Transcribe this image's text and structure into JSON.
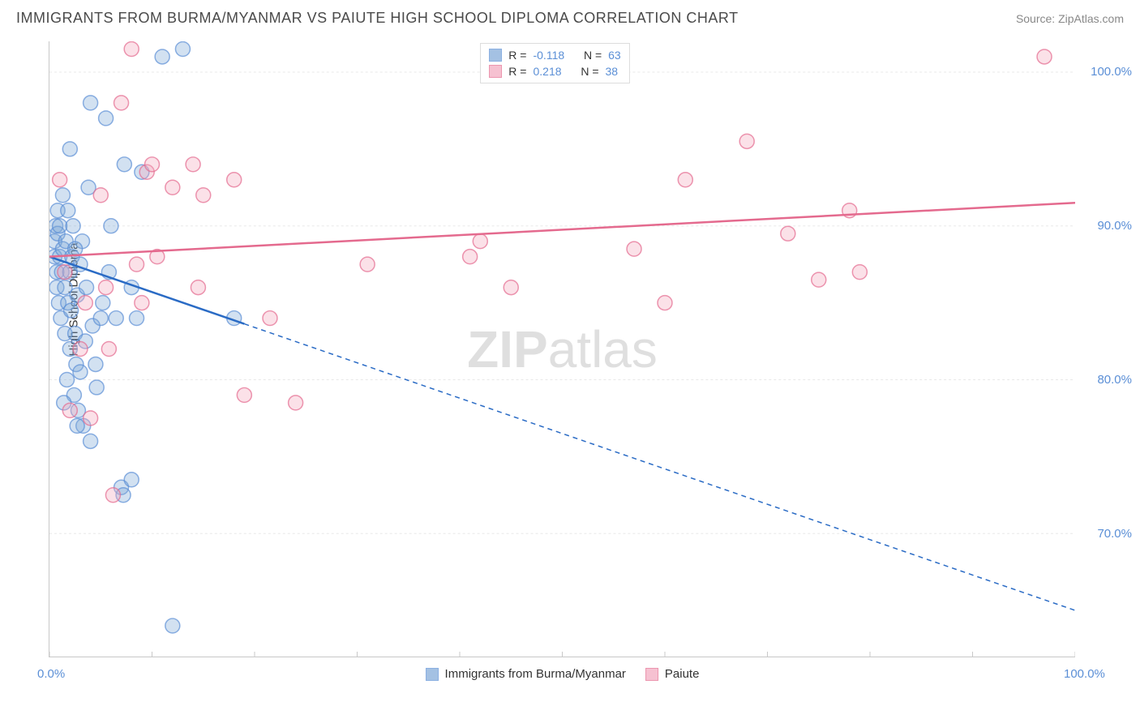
{
  "header": {
    "title": "IMMIGRANTS FROM BURMA/MYANMAR VS PAIUTE HIGH SCHOOL DIPLOMA CORRELATION CHART",
    "source": "Source: ZipAtlas.com"
  },
  "chart": {
    "type": "scatter",
    "y_axis_label": "High School Diploma",
    "background_color": "#ffffff",
    "grid_color": "#e8e8e8",
    "axis_color": "#c8c8c8",
    "tick_label_color": "#5b8fd6",
    "xlim": [
      0,
      100
    ],
    "ylim": [
      62,
      102
    ],
    "y_ticks": [
      70,
      80,
      90,
      100
    ],
    "y_tick_labels": [
      "70.0%",
      "80.0%",
      "90.0%",
      "100.0%"
    ],
    "x_ticks": [
      0,
      100
    ],
    "x_tick_labels": [
      "0.0%",
      "100.0%"
    ],
    "x_minor_ticks": [
      0,
      10,
      20,
      30,
      40,
      50,
      60,
      70,
      80,
      90,
      100
    ],
    "watermark": "ZIPatlas",
    "marker_radius": 9,
    "marker_fill_opacity": 0.35,
    "marker_stroke_width": 1.5,
    "series": [
      {
        "name": "Immigrants from Burma/Myanmar",
        "fill_color": "#7ea8d8",
        "stroke_color": "#5b8fd6",
        "trend_color": "#2a6bc5",
        "trend_width": 2.5,
        "trend_dash_from_x": 19,
        "R": "-0.118",
        "N": "63",
        "trend": {
          "x0": 0,
          "y0": 88,
          "x1": 100,
          "y1": 65
        },
        "points": [
          [
            0.5,
            88
          ],
          [
            0.5,
            89
          ],
          [
            0.6,
            90
          ],
          [
            0.7,
            87
          ],
          [
            0.7,
            86
          ],
          [
            0.8,
            91
          ],
          [
            0.8,
            89.5
          ],
          [
            0.9,
            85
          ],
          [
            1,
            88
          ],
          [
            1,
            90
          ],
          [
            1.1,
            84
          ],
          [
            1.2,
            87
          ],
          [
            1.3,
            92
          ],
          [
            1.3,
            88.5
          ],
          [
            1.5,
            83
          ],
          [
            1.5,
            86
          ],
          [
            1.6,
            89
          ],
          [
            1.7,
            80
          ],
          [
            1.8,
            91
          ],
          [
            1.8,
            85
          ],
          [
            2,
            82
          ],
          [
            2,
            87
          ],
          [
            2.1,
            84.5
          ],
          [
            2.2,
            88
          ],
          [
            2.3,
            90
          ],
          [
            2.4,
            79
          ],
          [
            2.5,
            83
          ],
          [
            2.6,
            81
          ],
          [
            2.7,
            85.5
          ],
          [
            2.8,
            78
          ],
          [
            3,
            80.5
          ],
          [
            3,
            87.5
          ],
          [
            3.2,
            89
          ],
          [
            3.3,
            77
          ],
          [
            3.5,
            82.5
          ],
          [
            3.6,
            86
          ],
          [
            4,
            76
          ],
          [
            4.2,
            83.5
          ],
          [
            4.5,
            81
          ],
          [
            4.6,
            79.5
          ],
          [
            5,
            84
          ],
          [
            5.2,
            85
          ],
          [
            5.5,
            97
          ],
          [
            5.8,
            87
          ],
          [
            6.5,
            84
          ],
          [
            7,
            73
          ],
          [
            7.2,
            72.5
          ],
          [
            8,
            73.5
          ],
          [
            8.5,
            84
          ],
          [
            9,
            93.5
          ],
          [
            11,
            101
          ],
          [
            12,
            64
          ],
          [
            13,
            101.5
          ],
          [
            7.3,
            94
          ],
          [
            4,
            98
          ],
          [
            2.5,
            88.5
          ],
          [
            3.8,
            92.5
          ],
          [
            6,
            90
          ],
          [
            8,
            86
          ],
          [
            2.7,
            77
          ],
          [
            1.4,
            78.5
          ],
          [
            18,
            84
          ],
          [
            2.0,
            95
          ]
        ]
      },
      {
        "name": "Paiute",
        "fill_color": "#f3a8be",
        "stroke_color": "#e46a8e",
        "trend_color": "#e46a8e",
        "trend_width": 2.5,
        "R": "0.218",
        "N": "38",
        "trend": {
          "x0": 0,
          "y0": 88,
          "x1": 100,
          "y1": 91.5
        },
        "points": [
          [
            1,
            93
          ],
          [
            1.5,
            87
          ],
          [
            2,
            78
          ],
          [
            3,
            82
          ],
          [
            3.5,
            85
          ],
          [
            4,
            77.5
          ],
          [
            5,
            92
          ],
          [
            5.5,
            86
          ],
          [
            6.2,
            72.5
          ],
          [
            7,
            98
          ],
          [
            8,
            101.5
          ],
          [
            8.5,
            87.5
          ],
          [
            9,
            85
          ],
          [
            9.5,
            93.5
          ],
          [
            10,
            94
          ],
          [
            10.5,
            88
          ],
          [
            12,
            92.5
          ],
          [
            14,
            94
          ],
          [
            14.5,
            86
          ],
          [
            15,
            92
          ],
          [
            18,
            93
          ],
          [
            19,
            79
          ],
          [
            21.5,
            84
          ],
          [
            24,
            78.5
          ],
          [
            31,
            87.5
          ],
          [
            41,
            88
          ],
          [
            42,
            89
          ],
          [
            45,
            86
          ],
          [
            57,
            88.5
          ],
          [
            60,
            85
          ],
          [
            62,
            93
          ],
          [
            68,
            95.5
          ],
          [
            72,
            89.5
          ],
          [
            75,
            86.5
          ],
          [
            79,
            87
          ],
          [
            78,
            91
          ],
          [
            97,
            101
          ],
          [
            5.8,
            82
          ]
        ]
      }
    ]
  },
  "legend": {
    "stats_labels": {
      "R": "R =",
      "N": "N ="
    },
    "bottom_items": [
      {
        "label": "Immigrants from Burma/Myanmar",
        "fill": "#7ea8d8",
        "stroke": "#5b8fd6"
      },
      {
        "label": "Paiute",
        "fill": "#f3a8be",
        "stroke": "#e46a8e"
      }
    ]
  }
}
